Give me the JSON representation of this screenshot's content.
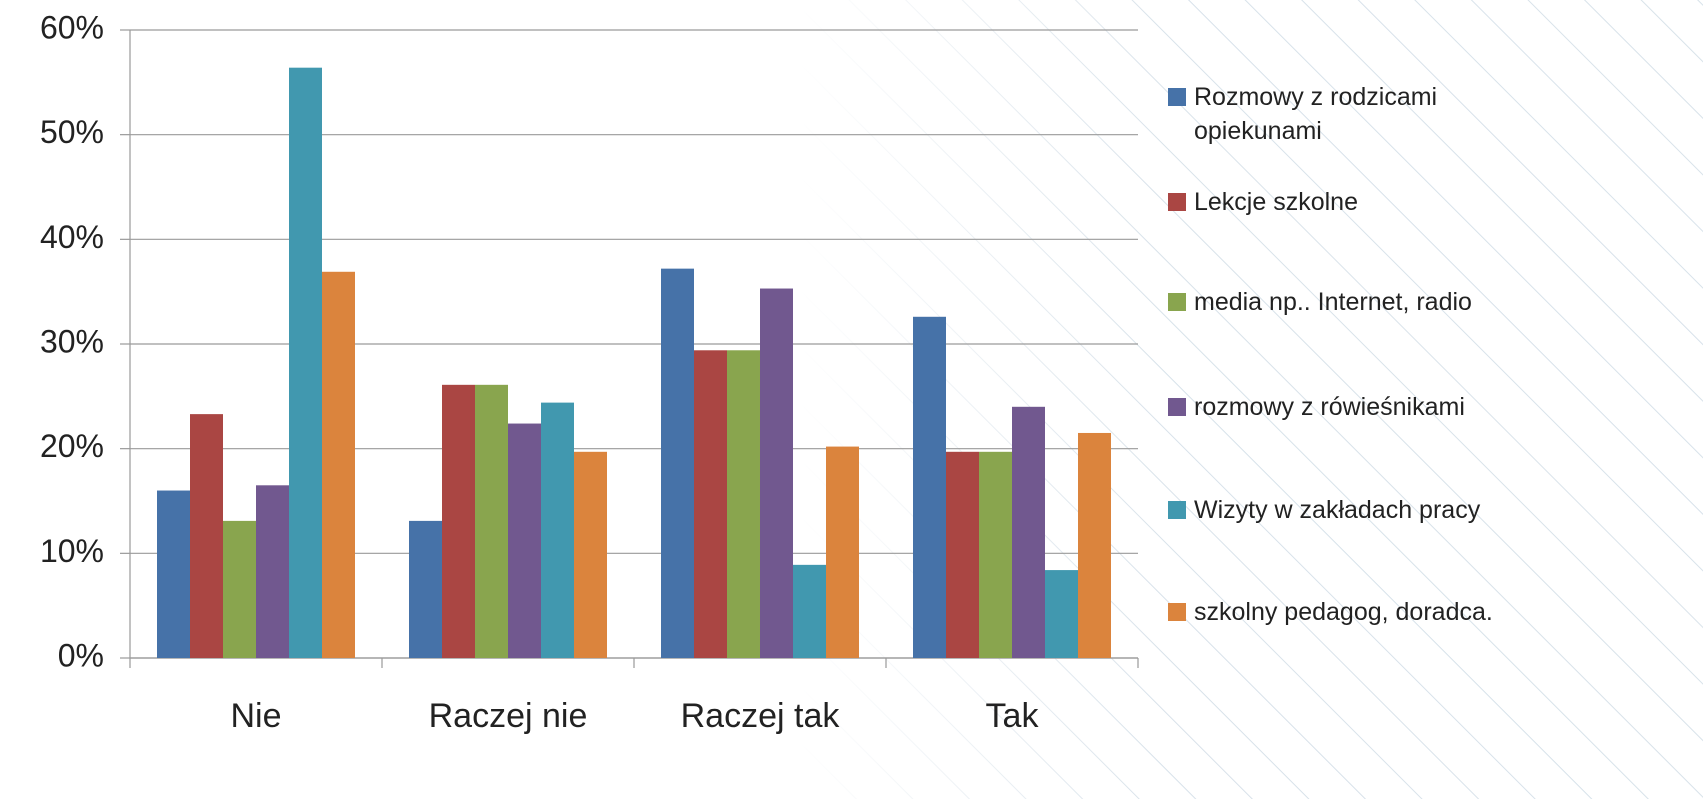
{
  "chart_data": {
    "type": "bar",
    "categories": [
      "Nie",
      "Raczej nie",
      "Raczej tak",
      "Tak"
    ],
    "series": [
      {
        "name": "Rozmowy z rodzicami opiekunami",
        "color": "#4672a8",
        "values": [
          16.0,
          13.1,
          37.2,
          32.6
        ]
      },
      {
        "name": "Lekcje szkolne",
        "color": "#aa4643",
        "values": [
          23.3,
          26.1,
          29.4,
          19.7
        ]
      },
      {
        "name": "media np.. Internet, radio",
        "color": "#89a54e",
        "values": [
          13.1,
          26.1,
          29.4,
          19.7
        ]
      },
      {
        "name": "rozmowy z rówieśnikami",
        "color": "#71588f",
        "values": [
          16.5,
          22.4,
          35.3,
          24.0
        ]
      },
      {
        "name": "Wizyty w zakładach pracy",
        "color": "#4198af",
        "values": [
          56.4,
          24.4,
          8.9,
          8.4
        ]
      },
      {
        "name": "szkolny pedagog, doradca.",
        "color": "#db843d",
        "values": [
          36.9,
          19.7,
          20.2,
          21.5
        ]
      }
    ],
    "ylim": [
      0,
      60
    ],
    "yticks": [
      {
        "value": 0,
        "label": "0%"
      },
      {
        "value": 10,
        "label": "10%"
      },
      {
        "value": 20,
        "label": "20%"
      },
      {
        "value": 30,
        "label": "30%"
      },
      {
        "value": 40,
        "label": "40%"
      },
      {
        "value": 50,
        "label": "50%"
      },
      {
        "value": 60,
        "label": "60%"
      }
    ],
    "grid": true,
    "legend": "right"
  }
}
